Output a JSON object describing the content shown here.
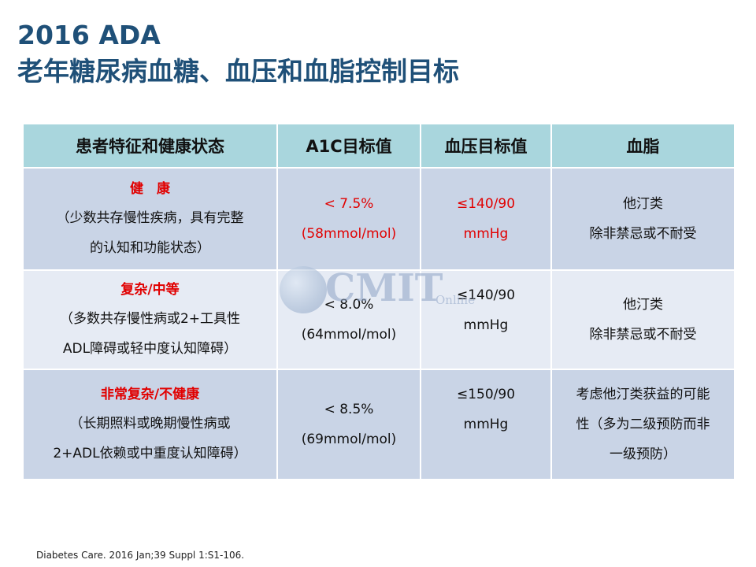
{
  "title": {
    "line1": "2016 ADA",
    "line2": "老年糖尿病血糖、血压和血脂控制目标"
  },
  "table": {
    "headers": [
      "患者特征和健康状态",
      "A1C目标值",
      "血压目标值",
      "血脂"
    ],
    "rows": [
      {
        "status_title": "健　康",
        "status_desc": "（少数共存慢性疾病，具有完整\n的认知和功能状态）",
        "a1c": "< 7.5%\n(58mmol/mol)",
        "bp": "≤140/90\nmmHg",
        "lipid": "他汀类\n除非禁忌或不耐受"
      },
      {
        "status_title": "复杂/中等",
        "status_desc": "（多数共存慢性病或2+工具性\nADL障碍或轻中度认知障碍）",
        "a1c": "< 8.0%\n(64mmol/mol)",
        "bp": "≤140/90\nmmHg",
        "lipid": "他汀类\n除非禁忌或不耐受"
      },
      {
        "status_title": "非常复杂/不健康",
        "status_desc": "（长期照料或晚期慢性病或\n2+ADL依赖或中重度认知障碍）",
        "a1c": "< 8.5%\n(69mmol/mol)",
        "bp": "≤150/90\nmmHg",
        "lipid": "考虑他汀类获益的可能\n性（多为二级预防而非\n一级预防）"
      }
    ]
  },
  "watermark": {
    "main": "CMIT",
    "sub": "Online"
  },
  "footnote": "Diabetes Care. 2016 Jan;39 Suppl 1:S1-106.",
  "colors": {
    "title": "#1f5078",
    "header_bg": "#a9d6dd",
    "row_dark": "#c9d4e6",
    "row_light": "#e6ebf4",
    "highlight_red": "#e10000"
  }
}
